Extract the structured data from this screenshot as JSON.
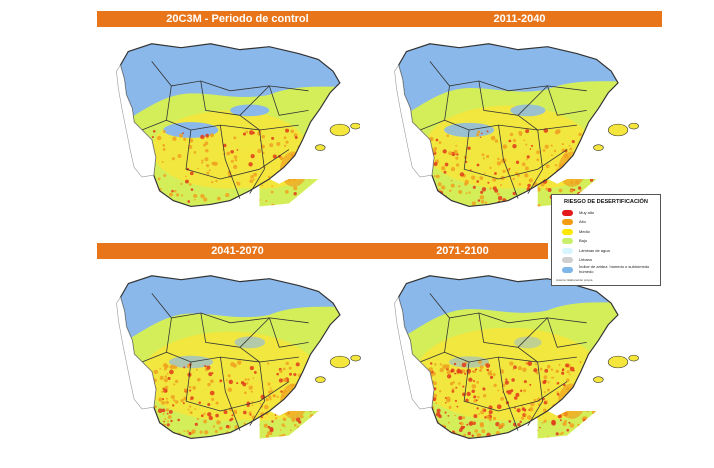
{
  "panels": [
    {
      "title": "20C3M - Periodo de control",
      "dry": 0.0
    },
    {
      "title": "2011-2040",
      "dry": 0.25
    },
    {
      "title": "2041-2070",
      "dry": 0.55
    },
    {
      "title": "2071-2100",
      "dry": 0.75
    }
  ],
  "legend": {
    "title": "RIESGO DE DESERTIFICACIÓN",
    "items": [
      {
        "label": "Muy alto",
        "color": "#e31a1c"
      },
      {
        "label": "Alto",
        "color": "#f39c12"
      },
      {
        "label": "Medio",
        "color": "#ffe800"
      },
      {
        "label": "Bajo",
        "color": "#c8f06a"
      },
      {
        "label": "Láminas de agua",
        "color": "#d6f5ff"
      },
      {
        "label": "Urbano",
        "color": "#cfcfcf"
      },
      {
        "label": "Índice de aridez: húmedo o subhúmedo húmedo",
        "color": "#7eb6e8"
      }
    ],
    "source": "Autoría: Elaboración propia"
  },
  "colors": {
    "header": "#e8751a",
    "humid": "#8ab8ea",
    "low": "#d4ee5a",
    "medium": "#f4e63c",
    "high": "#f0a020",
    "very_high": "#e23a1a",
    "border": "#333333"
  }
}
